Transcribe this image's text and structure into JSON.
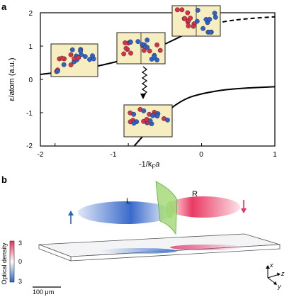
{
  "panel_a": {
    "label": "a",
    "ylabel": "ε/atom (a.u.)",
    "xlabel": "-1/k",
    "xlabel_sub": "F",
    "xlabel_tail": "a",
    "x_ticks": [
      "-2",
      "-1",
      "0",
      "1"
    ],
    "y_ticks": [
      "2",
      "1",
      "0",
      "-1",
      "-2"
    ],
    "colors": {
      "spin_up": "#d8304a",
      "spin_down": "#2f62c8",
      "box_fill": "#f6eec0"
    }
  },
  "panel_b": {
    "label": "b",
    "left_label": "L",
    "right_label": "R",
    "colorbar_label": "Optical density",
    "colorbar_top": "3",
    "colorbar_mid": "0",
    "colorbar_bottom": "3",
    "scalebar": "100 μm",
    "axes": {
      "x": "x",
      "y": "y",
      "z": "z"
    },
    "colors": {
      "left_cloud": "#2f62c8",
      "right_cloud": "#e8305a",
      "barrier": "#9ad66a"
    }
  },
  "chart_data": {
    "type": "line",
    "xlim": [
      -2.2,
      1
    ],
    "ylim": [
      -2,
      2
    ],
    "grid": false,
    "series": [
      {
        "style": "solid",
        "points": [
          [
            -2.2,
            0.15
          ],
          [
            -1.8,
            0.25
          ],
          [
            -1.4,
            0.4
          ],
          [
            -1.0,
            0.62
          ],
          [
            -0.6,
            0.95
          ],
          [
            -0.2,
            1.38
          ],
          [
            0,
            1.6
          ]
        ]
      },
      {
        "style": "dashed",
        "points": [
          [
            0,
            1.6
          ],
          [
            0.3,
            1.74
          ],
          [
            0.6,
            1.82
          ],
          [
            1.0,
            1.88
          ]
        ]
      },
      {
        "style": "solid",
        "points": [
          [
            -0.92,
            -2.0
          ],
          [
            -0.7,
            -1.45
          ],
          [
            -0.5,
            -1.0
          ],
          [
            -0.25,
            -0.6
          ],
          [
            0,
            -0.42
          ],
          [
            0.4,
            -0.28
          ],
          [
            1.0,
            -0.22
          ]
        ]
      }
    ]
  }
}
